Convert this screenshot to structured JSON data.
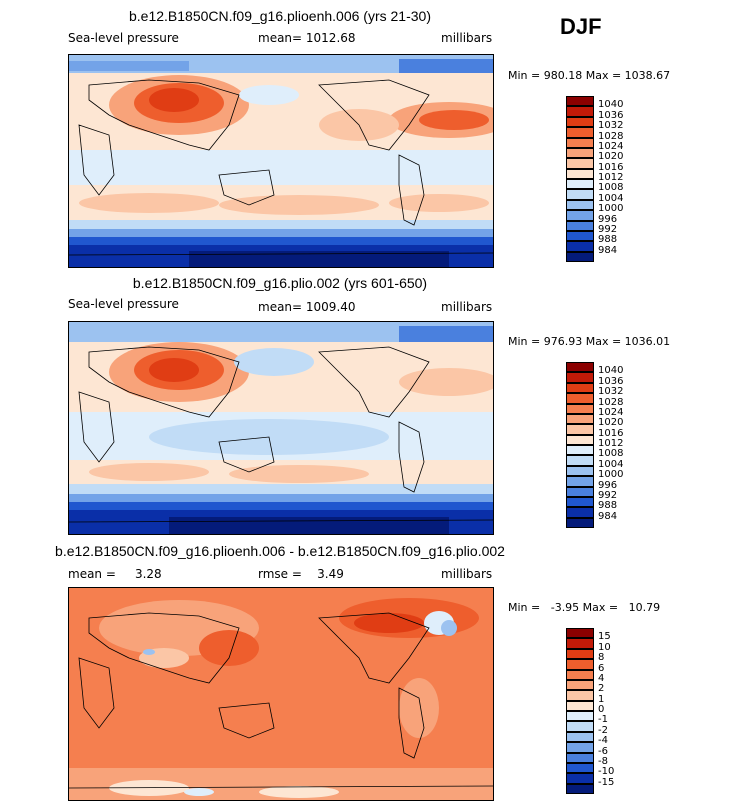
{
  "season": "DJF",
  "panels": [
    {
      "title": "b.e12.B1850CN.f09_g16.plioenh.006 (yrs 21-30)",
      "left_label": "Sea-level pressure",
      "mid_label": "mean= 1012.68",
      "right_label": "millibars",
      "minmax": "Min = 980.18 Max = 1038.67",
      "colorbar": [
        "1040",
        "1036",
        "1032",
        "1028",
        "1024",
        "1020",
        "1016",
        "1012",
        "1008",
        "1004",
        "1000",
        "996",
        "992",
        "988",
        "984"
      ],
      "colors": [
        "#8b0000",
        "#c21a08",
        "#e03d14",
        "#ee5e2d",
        "#f57f4f",
        "#f8a37a",
        "#fbc6a6",
        "#fde6d3",
        "#dfeefb",
        "#c1dcf6",
        "#9cc2f0",
        "#73a3e8",
        "#4a80de",
        "#2057cf",
        "#0a2fa8",
        "#041b7a"
      ],
      "land_colors": {
        "bg": "#fde6d3"
      }
    },
    {
      "title": "b.e12.B1850CN.f09_g16.plio.002 (yrs 601-650)",
      "left_label": "Sea-level pressure",
      "mid_label": "mean= 1009.40",
      "right_label": "millibars",
      "minmax": "Min = 976.93 Max = 1036.01",
      "colorbar": [
        "1040",
        "1036",
        "1032",
        "1028",
        "1024",
        "1020",
        "1016",
        "1012",
        "1008",
        "1004",
        "1000",
        "996",
        "992",
        "988",
        "984"
      ],
      "colors": [
        "#8b0000",
        "#c21a08",
        "#e03d14",
        "#ee5e2d",
        "#f57f4f",
        "#f8a37a",
        "#fbc6a6",
        "#fde6d3",
        "#dfeefb",
        "#c1dcf6",
        "#9cc2f0",
        "#73a3e8",
        "#4a80de",
        "#2057cf",
        "#0a2fa8",
        "#041b7a"
      ]
    },
    {
      "title": "b.e12.B1850CN.f09_g16.plioenh.006 - b.e12.B1850CN.f09_g16.plio.002",
      "left_label": "mean =     3.28",
      "mid_label": "rmse =    3.49",
      "right_label": "millibars",
      "minmax": "Min =   -3.95 Max =   10.79",
      "colorbar": [
        "15",
        "10",
        "8",
        "6",
        "4",
        "2",
        "1",
        "0",
        "-1",
        "-2",
        "-4",
        "-6",
        "-8",
        "-10",
        "-15"
      ],
      "colors": [
        "#8b0000",
        "#c21a08",
        "#e03d14",
        "#ee5e2d",
        "#f57f4f",
        "#f8a37a",
        "#fbc6a6",
        "#fde6d3",
        "#dfeefb",
        "#c1dcf6",
        "#9cc2f0",
        "#73a3e8",
        "#4a80de",
        "#2057cf",
        "#0a2fa8",
        "#041b7a"
      ]
    }
  ],
  "chart_data": [
    {
      "type": "heatmap",
      "title": "b.e12.B1850CN.f09_g16.plioenh.006 (yrs 21-30)",
      "variable": "Sea-level pressure",
      "units": "millibars",
      "mean": 1012.68,
      "min": 980.18,
      "max": 1038.67,
      "levels": [
        984,
        988,
        992,
        996,
        1000,
        1004,
        1008,
        1012,
        1016,
        1020,
        1024,
        1028,
        1032,
        1036,
        1040
      ]
    },
    {
      "type": "heatmap",
      "title": "b.e12.B1850CN.f09_g16.plio.002 (yrs 601-650)",
      "variable": "Sea-level pressure",
      "units": "millibars",
      "mean": 1009.4,
      "min": 976.93,
      "max": 1036.01,
      "levels": [
        984,
        988,
        992,
        996,
        1000,
        1004,
        1008,
        1012,
        1016,
        1020,
        1024,
        1028,
        1032,
        1036,
        1040
      ]
    },
    {
      "type": "heatmap",
      "title": "b.e12.B1850CN.f09_g16.plioenh.006 - b.e12.B1850CN.f09_g16.plio.002",
      "units": "millibars",
      "mean": 3.28,
      "rmse": 3.49,
      "min": -3.95,
      "max": 10.79,
      "levels": [
        -15,
        -10,
        -8,
        -6,
        -4,
        -2,
        -1,
        0,
        1,
        2,
        4,
        6,
        8,
        10,
        15
      ]
    }
  ]
}
